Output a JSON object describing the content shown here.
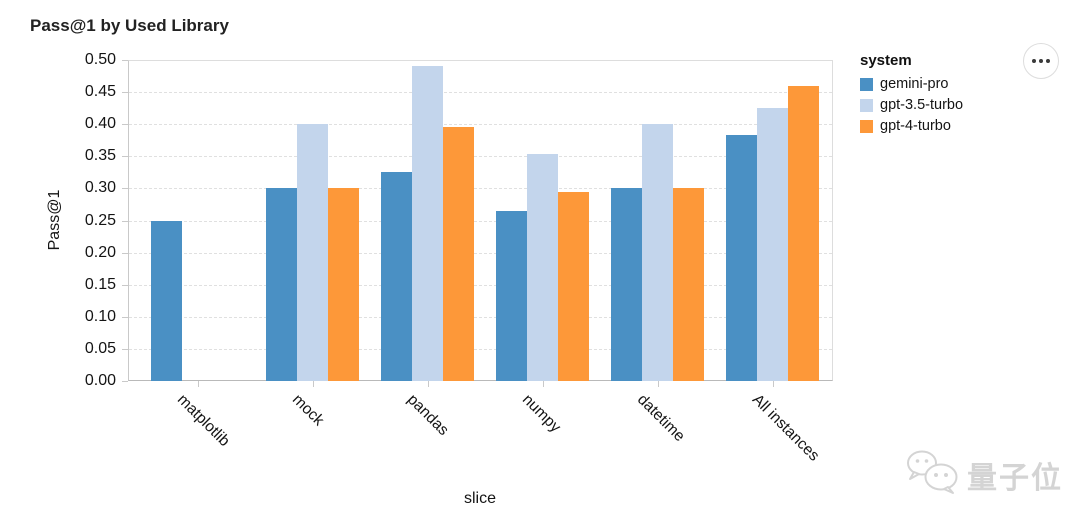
{
  "title": "Pass@1 by Used Library",
  "chart_data": {
    "type": "bar",
    "title": "Pass@1 by Used Library",
    "xlabel": "slice",
    "ylabel": "Pass@1",
    "ylim": [
      0,
      0.5
    ],
    "yticks": [
      "0.00",
      "0.05",
      "0.10",
      "0.15",
      "0.20",
      "0.25",
      "0.30",
      "0.35",
      "0.40",
      "0.45",
      "0.50"
    ],
    "categories": [
      "matplotlib",
      "mock",
      "pandas",
      "numpy",
      "datetime",
      "All instances"
    ],
    "grid": "horizontal-dashed",
    "legend": {
      "title": "system",
      "position": "right"
    },
    "series": [
      {
        "name": "gemini-pro",
        "color": "#4a90c4",
        "values": [
          0.25,
          0.3,
          0.325,
          0.265,
          0.3,
          0.383
        ]
      },
      {
        "name": "gpt-3.5-turbo",
        "color": "#c3d5ec",
        "values": [
          0.0,
          0.4,
          0.49,
          0.353,
          0.4,
          0.425
        ]
      },
      {
        "name": "gpt-4-turbo",
        "color": "#fd9839",
        "values": [
          0.0,
          0.3,
          0.395,
          0.295,
          0.3,
          0.46
        ]
      }
    ]
  },
  "menu": {
    "icon": "ellipsis-icon"
  },
  "watermark": {
    "icon": "wechat-logo-icon",
    "text": "量子位"
  }
}
